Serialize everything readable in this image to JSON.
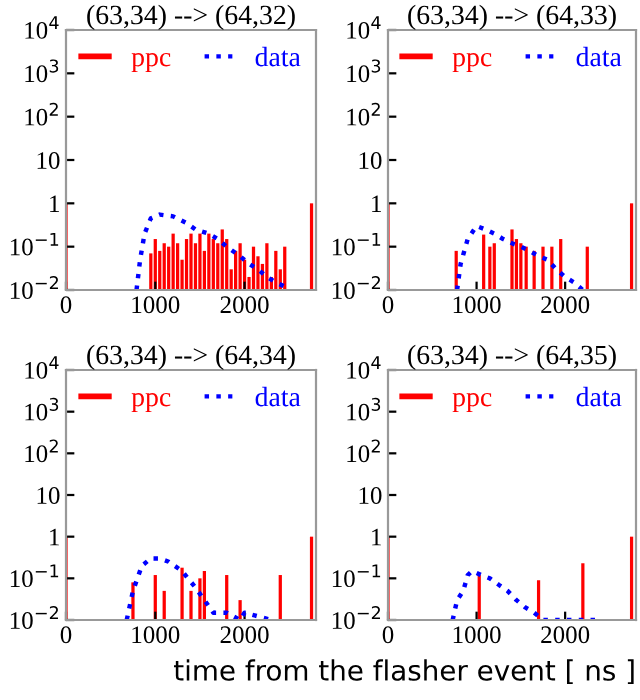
{
  "chart_data": [
    {
      "type": "bar",
      "title": "(63,34) --> (64,32)",
      "xlim": [
        0,
        2800
      ],
      "xticks": [
        0,
        1000,
        2000
      ],
      "ylim": [
        0.01,
        10000
      ],
      "log": "y",
      "legend": "top",
      "grid": false,
      "yticks": [
        {
          "value": 0.01,
          "label": "10$^{−2}$"
        },
        {
          "value": 0.1,
          "label": "10$^{−1}$"
        },
        1,
        10,
        {
          "value": 100,
          "label": "10$^{2}$"
        },
        {
          "value": 1000,
          "label": "10$^{3}$"
        },
        {
          "value": 10000,
          "label": "10$^{4}$"
        }
      ],
      "series": [
        {
          "name": "ppc",
          "color": "#ff0000",
          "x": [
            0,
            950,
            1000,
            1050,
            1100,
            1150,
            1200,
            1250,
            1300,
            1350,
            1400,
            1450,
            1500,
            1550,
            1600,
            1650,
            1700,
            1750,
            1800,
            1850,
            1900,
            1950,
            2000,
            2050,
            2100,
            2150,
            2200,
            2250,
            2300,
            2350,
            2400,
            2450,
            2750
          ],
          "values": [
            1,
            0.07,
            0.15,
            0.08,
            0.12,
            0.1,
            0.2,
            0.12,
            0.05,
            0.15,
            0.2,
            0.12,
            0.2,
            0.08,
            0.2,
            0.15,
            0.12,
            0.25,
            0.15,
            0.03,
            0.08,
            0.12,
            0.05,
            0.02,
            0.1,
            0.06,
            0.04,
            0.12,
            0.02,
            0.08,
            0.03,
            0.1,
            1
          ]
        },
        {
          "name": "data",
          "type": "line",
          "color": "#0000ff",
          "line_style": "dotted",
          "x": [
            790,
            830,
            880,
            950,
            1050,
            1200,
            1350,
            1450,
            1600,
            1700,
            1800,
            1950,
            2050,
            2150,
            2250,
            2350,
            2450
          ],
          "values": [
            0.01,
            0.05,
            0.2,
            0.45,
            0.55,
            0.5,
            0.35,
            0.25,
            0.2,
            0.15,
            0.1,
            0.06,
            0.04,
            0.03,
            0.02,
            0.015,
            0.012
          ]
        }
      ]
    },
    {
      "type": "bar",
      "title": "(63,34) --> (64,33)",
      "xlim": [
        0,
        2800
      ],
      "xticks": [
        0,
        1000,
        2000
      ],
      "ylim": [
        0.01,
        10000
      ],
      "log": "y",
      "legend": "top",
      "grid": false,
      "yticks": [
        {
          "value": 0.01,
          "label": "10$^{−2}$"
        },
        {
          "value": 0.1,
          "label": "10$^{−1}$"
        },
        1,
        10,
        {
          "value": 100,
          "label": "10$^{2}$"
        },
        {
          "value": 1000,
          "label": "10$^{3}$"
        },
        {
          "value": 10000,
          "label": "10$^{4}$"
        }
      ],
      "series": [
        {
          "name": "ppc",
          "color": "#ff0000",
          "x": [
            0,
            770,
            1080,
            1150,
            1200,
            1400,
            1450,
            1500,
            1560,
            1650,
            1750,
            1850,
            1950,
            2250,
            2750
          ],
          "values": [
            1,
            0.08,
            0.19,
            0.1,
            0.12,
            0.25,
            0.15,
            0.12,
            0.1,
            0.08,
            0.1,
            0.1,
            0.15,
            0.1,
            1
          ]
        },
        {
          "name": "data",
          "type": "line",
          "color": "#0000ff",
          "line_style": "dotted",
          "x": [
            780,
            820,
            900,
            1000,
            1100,
            1200,
            1300,
            1400,
            1500,
            1600,
            1700,
            1800,
            1900,
            2000,
            2100,
            2200
          ],
          "values": [
            0.01,
            0.04,
            0.15,
            0.3,
            0.25,
            0.2,
            0.15,
            0.12,
            0.1,
            0.08,
            0.06,
            0.05,
            0.03,
            0.02,
            0.015,
            0.01
          ]
        }
      ]
    },
    {
      "type": "bar",
      "title": "(63,34) --> (64,34)",
      "xlim": [
        0,
        2800
      ],
      "xticks": [
        0,
        1000,
        2000
      ],
      "ylim": [
        0.01,
        10000
      ],
      "log": "y",
      "legend": "top",
      "grid": false,
      "yticks": [
        {
          "value": 0.01,
          "label": "10$^{−2}$"
        },
        {
          "value": 0.1,
          "label": "10$^{−1}$"
        },
        1,
        10,
        {
          "value": 100,
          "label": "10$^{2}$"
        },
        {
          "value": 1000,
          "label": "10$^{3}$"
        },
        {
          "value": 10000,
          "label": "10$^{4}$"
        }
      ],
      "series": [
        {
          "name": "ppc",
          "color": "#ff0000",
          "x": [
            0,
            750,
            1000,
            1100,
            1300,
            1400,
            1500,
            1550,
            1800,
            1950,
            2400,
            2750
          ],
          "values": [
            1,
            0.08,
            0.12,
            0.05,
            0.18,
            0.05,
            0.1,
            0.15,
            0.12,
            0.03,
            0.12,
            1
          ]
        },
        {
          "name": "data",
          "type": "line",
          "color": "#0000ff",
          "line_style": "dotted",
          "x": [
            680,
            750,
            850,
            950,
            1050,
            1150,
            1300,
            1450,
            1550,
            1650,
            1800,
            1950,
            2000,
            2300
          ],
          "values": [
            0.01,
            0.05,
            0.2,
            0.3,
            0.3,
            0.25,
            0.15,
            0.06,
            0.03,
            0.015,
            0.015,
            0.01,
            0.015,
            0.01
          ]
        }
      ]
    },
    {
      "type": "bar",
      "title": "(63,34) --> (64,35)",
      "xlabel": "time from the flasher event [ ns ]",
      "xlim": [
        0,
        2800
      ],
      "xticks": [
        0,
        1000,
        2000
      ],
      "ylim": [
        0.01,
        10000
      ],
      "log": "y",
      "legend": "top",
      "grid": false,
      "yticks": [
        {
          "value": 0.01,
          "label": "10$^{−2}$"
        },
        {
          "value": 0.1,
          "label": "10$^{−1}$"
        },
        1,
        10,
        {
          "value": 100,
          "label": "10$^{2}$"
        },
        {
          "value": 1000,
          "label": "10$^{3}$"
        },
        {
          "value": 10000,
          "label": "10$^{4}$"
        }
      ],
      "series": [
        {
          "name": "ppc",
          "color": "#ff0000",
          "x": [
            0,
            1030,
            1700,
            2200,
            2750
          ],
          "values": [
            1,
            0.12,
            0.09,
            0.23,
            1
          ]
        },
        {
          "name": "data",
          "type": "line",
          "color": "#0000ff",
          "line_style": "dotted",
          "x": [
            730,
            780,
            850,
            900,
            950,
            1050,
            1150,
            1250,
            1350,
            1450,
            1550,
            1650,
            1750,
            2100,
            2400
          ],
          "values": [
            0.01,
            0.03,
            0.05,
            0.12,
            0.15,
            0.12,
            0.1,
            0.07,
            0.05,
            0.03,
            0.02,
            0.015,
            0.01,
            0.01,
            0.01
          ]
        }
      ]
    }
  ]
}
